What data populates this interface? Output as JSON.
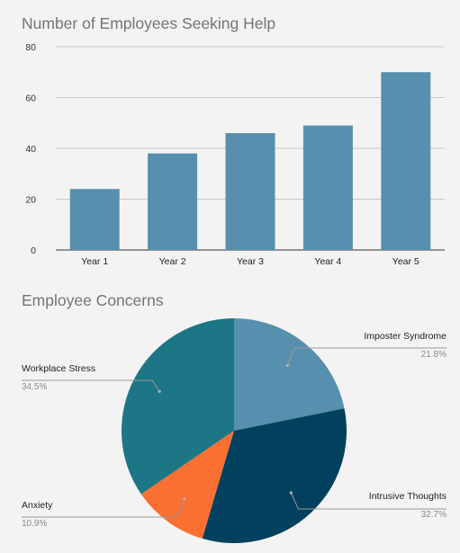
{
  "chart_data": [
    {
      "type": "bar",
      "title": "Number of Employees Seeking Help",
      "categories": [
        "Year 1",
        "Year 2",
        "Year 3",
        "Year 4",
        "Year 5"
      ],
      "values": [
        24,
        38,
        46,
        49,
        70
      ],
      "ylim": [
        0,
        80
      ],
      "yticks": [
        "0",
        "20",
        "40",
        "60",
        "80"
      ],
      "grid": true,
      "bar_color": "#5790af"
    },
    {
      "type": "pie",
      "title": "Employee Concerns",
      "slices": [
        {
          "label": "Imposter Syndrome",
          "percent_label": "21.8%",
          "value": 21.8,
          "color": "#5790af"
        },
        {
          "label": "Intrusive Thoughts",
          "percent_label": "32.7%",
          "value": 32.7,
          "color": "#02415e"
        },
        {
          "label": "Anxiety",
          "percent_label": "10.9%",
          "value": 10.9,
          "color": "#fa6f32"
        },
        {
          "label": "Workplace Stress",
          "percent_label": "34.5%",
          "value": 34.5,
          "color": "#1d7686"
        }
      ]
    }
  ]
}
